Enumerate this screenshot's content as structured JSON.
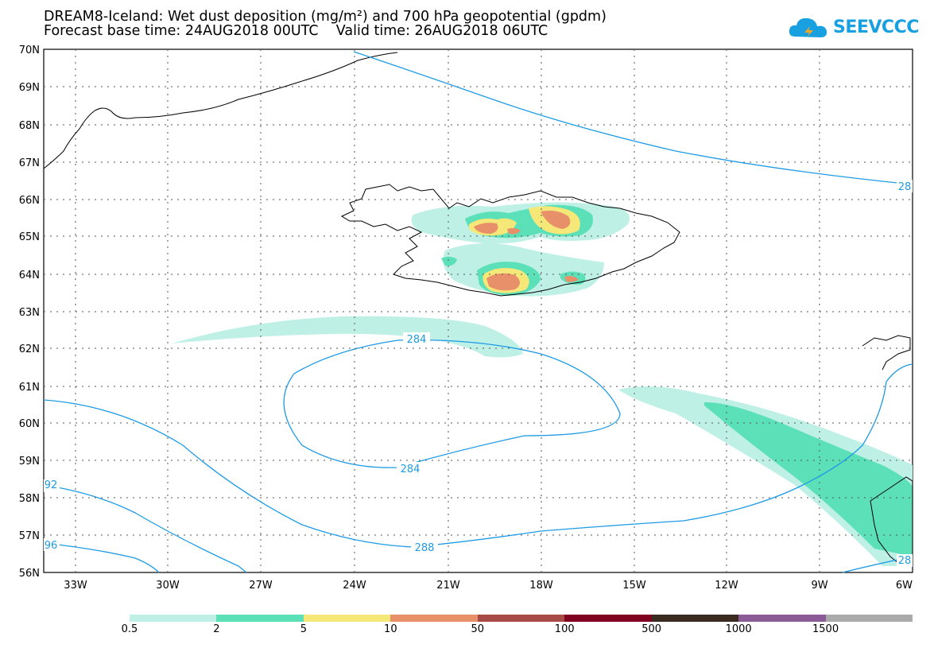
{
  "header": {
    "line1": "DREAM8-Iceland: Wet dust deposition (mg/m²) and 700 hPa geopotential (gpdm)",
    "line2": "Forecast base time: 24AUG2018 00UTC    Valid time: 26AUG2018 06UTC"
  },
  "logo": {
    "text": "SEEVCCC",
    "icon": "cloud-icon"
  },
  "map": {
    "lon_labels": [
      "33W",
      "30W",
      "27W",
      "24W",
      "21W",
      "18W",
      "15W",
      "12W",
      "9W",
      "6W"
    ],
    "lat_labels": [
      "70N",
      "69N",
      "68N",
      "67N",
      "66N",
      "65N",
      "64N",
      "63N",
      "62N",
      "61N",
      "60N",
      "59N",
      "58N",
      "57N",
      "56N"
    ],
    "contour_labels": [
      "284",
      "284",
      "288",
      "28",
      "92",
      "96",
      "28"
    ]
  },
  "legend": {
    "labels": [
      "0.5",
      "2",
      "5",
      "10",
      "50",
      "100",
      "500",
      "1000",
      "1500"
    ],
    "colors": [
      "#bff0e6",
      "#5ce0b8",
      "#f5e878",
      "#e8906a",
      "#a84a45",
      "#800020",
      "#3a2a20",
      "#8c5a96",
      "#aaaaaa"
    ]
  }
}
